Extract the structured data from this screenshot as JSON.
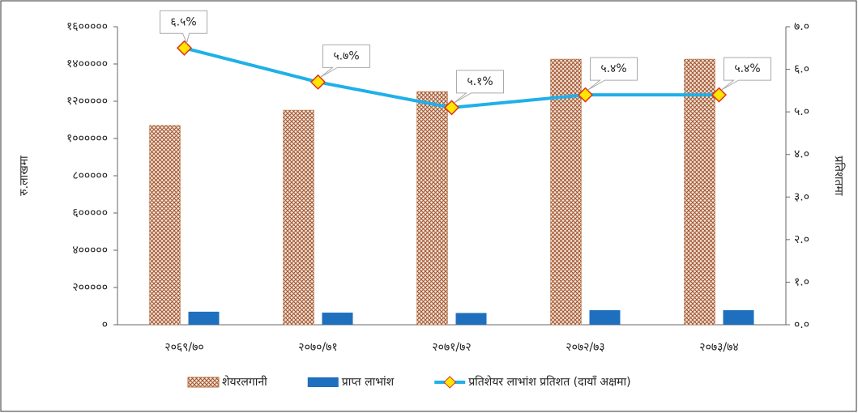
{
  "chart_data": {
    "type": "bar_line",
    "y_label": "रु.लाखमा",
    "y2_label": "प्रतिशतमा",
    "categories": [
      "२०६९/७०",
      "२०७०/७१",
      "२०७१/७२",
      "२०७२/७३",
      "२०७३/७४"
    ],
    "series": [
      {
        "name": "शेयरलगानी",
        "type": "bar",
        "color": "#b5703a",
        "values": [
          1070000,
          1152000,
          1252000,
          1426000,
          1426000
        ]
      },
      {
        "name": "प्राप्त लाभांश",
        "type": "bar",
        "color": "#1f6fbf",
        "values": [
          70000,
          65000,
          63000,
          78000,
          78000
        ]
      },
      {
        "name": "प्रतिशेयर लाभांश प्रतिशत (दायाँ अक्षमा)",
        "type": "line",
        "axis": "y2",
        "color": "#1fb0e8",
        "marker_color": "#ffe600",
        "marker_edge": "#e0301e",
        "values": [
          6.5,
          5.7,
          5.1,
          5.4,
          5.4
        ],
        "value_labels": [
          "६.५%",
          "५.७%",
          "५.१%",
          "५.४%",
          "५.४%"
        ]
      }
    ],
    "ylim": [
      0,
      1600000
    ],
    "yticks": [
      {
        "value": 0,
        "label": "०"
      },
      {
        "value": 200000,
        "label": "२०००००"
      },
      {
        "value": 400000,
        "label": "४०००००"
      },
      {
        "value": 600000,
        "label": "६०००००"
      },
      {
        "value": 800000,
        "label": "८०००००"
      },
      {
        "value": 1000000,
        "label": "१००००००"
      },
      {
        "value": 1200000,
        "label": "१२०००००"
      },
      {
        "value": 1400000,
        "label": "१४०००००"
      },
      {
        "value": 1600000,
        "label": "१६०००००"
      }
    ],
    "y2lim": [
      0,
      7
    ],
    "y2ticks": [
      {
        "value": 0,
        "label": "०.०"
      },
      {
        "value": 1,
        "label": "१.०"
      },
      {
        "value": 2,
        "label": "२.०"
      },
      {
        "value": 3,
        "label": "३.०"
      },
      {
        "value": 4,
        "label": "४.०"
      },
      {
        "value": 5,
        "label": "५.०"
      },
      {
        "value": 6,
        "label": "६.०"
      },
      {
        "value": 7,
        "label": "७.०"
      }
    ],
    "legend": "bottom"
  }
}
